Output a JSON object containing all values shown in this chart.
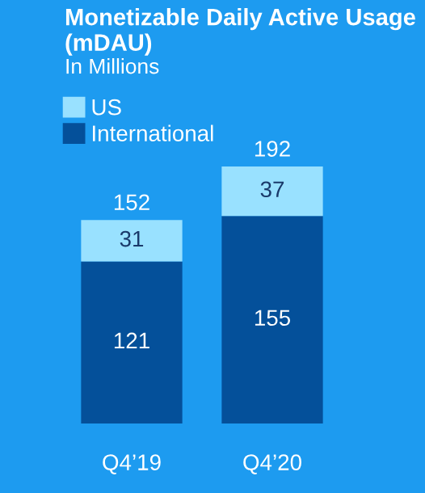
{
  "chart_data": {
    "type": "bar",
    "title": "Monetizable Daily Active Usage (mDAU)",
    "subtitle": "In Millions",
    "categories": [
      "Q4’19",
      "Q4’20"
    ],
    "stacked": true,
    "data_labels": true,
    "legend": "top left",
    "series": [
      {
        "name": "International",
        "color": "#04509a",
        "values": [
          121,
          155
        ]
      },
      {
        "name": "US",
        "color": "#99e1ff",
        "values": [
          31,
          37
        ]
      }
    ],
    "totals": [
      "152",
      "192"
    ]
  }
}
